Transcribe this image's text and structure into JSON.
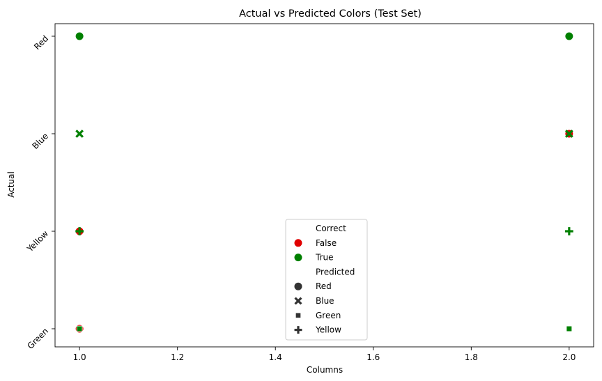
{
  "chart_data": {
    "type": "scatter",
    "title": "Actual vs Predicted Colors (Test Set)",
    "xlabel": "Columns",
    "ylabel": "Actual",
    "xlim": [
      0.95,
      2.05
    ],
    "x_ticks": [
      "1.0",
      "1.2",
      "1.4",
      "1.6",
      "1.8",
      "2.0"
    ],
    "y_categories": [
      "Red",
      "Blue",
      "Yellow",
      "Green"
    ],
    "grid": false,
    "legend": {
      "placement": "bottom-center",
      "hue_title": "Correct",
      "hue_entries": [
        {
          "label": "False",
          "color": "#e00000"
        },
        {
          "label": "True",
          "color": "#008000"
        }
      ],
      "style_title": "Predicted",
      "style_entries": [
        {
          "label": "Red",
          "marker": "circle"
        },
        {
          "label": "Blue",
          "marker": "x"
        },
        {
          "label": "Green",
          "marker": "square"
        },
        {
          "label": "Yellow",
          "marker": "plus"
        }
      ]
    },
    "points": [
      {
        "x": 1.0,
        "actual": "Red",
        "predicted": "Red",
        "correct": true
      },
      {
        "x": 2.0,
        "actual": "Red",
        "predicted": "Red",
        "correct": true
      },
      {
        "x": 1.0,
        "actual": "Blue",
        "predicted": "Blue",
        "correct": true
      },
      {
        "x": 2.0,
        "actual": "Blue",
        "predicted": "Red",
        "correct": false
      },
      {
        "x": 2.0,
        "actual": "Blue",
        "predicted": "Blue",
        "correct": true
      },
      {
        "x": 1.0,
        "actual": "Yellow",
        "predicted": "Red",
        "correct": false
      },
      {
        "x": 1.0,
        "actual": "Yellow",
        "predicted": "Yellow",
        "correct": true
      },
      {
        "x": 2.0,
        "actual": "Yellow",
        "predicted": "Yellow",
        "correct": true
      },
      {
        "x": 1.0,
        "actual": "Green",
        "predicted": "Red",
        "correct": false
      },
      {
        "x": 1.0,
        "actual": "Green",
        "predicted": "Green",
        "correct": true
      },
      {
        "x": 2.0,
        "actual": "Green",
        "predicted": "Green",
        "correct": true
      }
    ]
  }
}
